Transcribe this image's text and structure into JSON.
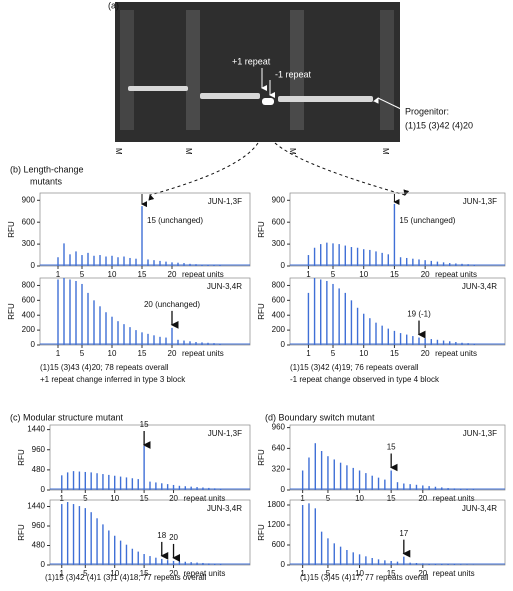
{
  "figure": {
    "panel_a": "(a)",
    "plus_repeat": "+1 repeat",
    "minus_repeat": "-1 repeat",
    "progenitor": "Progenitor:",
    "progenitor_structure": "(1)15 (3)42 (4)20",
    "marker": "M",
    "panel_b_line1": "(b) Length-change",
    "panel_b_line2": "mutants",
    "panel_c": "(c) Modular structure mutant",
    "panel_d": "(d) Boundary switch mutant"
  },
  "captions": [
    "(1)15 (3)43 (4)20; 78 repeats overall",
    "+1 repeat change inferred in type 3 block",
    "(1)15 (3)42 (4)19; 76 repeats overall",
    "-1 repeat change observed in type 4 block",
    "(1)15 (3)42 (4)1 (3)1 (4)18; 77 repeats overall",
    "(1)15 (3)45 (4)17; 77 repeats overall"
  ],
  "chart_data": [
    {
      "type": "bar",
      "label": "JUN-1,3F",
      "ylabel": "RFU",
      "xlabel": "repeat units",
      "color": "#3f6fd6",
      "xlim": [
        -2,
        33
      ],
      "ylim": [
        0,
        1000
      ],
      "xticks": [
        1,
        5,
        10,
        15,
        20
      ],
      "yticks": [
        0,
        300,
        600,
        900
      ],
      "x": [
        1,
        2,
        3,
        4,
        5,
        6,
        7,
        8,
        9,
        10,
        11,
        12,
        13,
        14,
        15,
        16,
        17,
        18,
        19,
        20,
        21,
        22,
        23,
        24,
        25,
        26,
        27,
        28
      ],
      "values": [
        120,
        310,
        160,
        200,
        150,
        180,
        140,
        150,
        130,
        140,
        120,
        130,
        110,
        100,
        820,
        90,
        80,
        70,
        60,
        50,
        45,
        40,
        30,
        25,
        20,
        15,
        10,
        8
      ],
      "annotations": [
        {
          "text": "15 (unchanged)",
          "x": 15
        }
      ]
    },
    {
      "type": "bar",
      "label": "JUN-3,4R",
      "ylabel": "RFU",
      "xlabel": "repeat units",
      "color": "#3f6fd6",
      "xlim": [
        -2,
        33
      ],
      "ylim": [
        0,
        900
      ],
      "xticks": [
        1,
        5,
        10,
        15,
        20
      ],
      "yticks": [
        0,
        200,
        400,
        600,
        800
      ],
      "x": [
        1,
        2,
        3,
        4,
        5,
        6,
        7,
        8,
        9,
        10,
        11,
        12,
        13,
        14,
        15,
        16,
        17,
        18,
        19,
        20,
        21,
        22,
        23,
        24,
        25,
        26,
        27,
        28
      ],
      "values": [
        880,
        900,
        880,
        860,
        820,
        700,
        600,
        520,
        440,
        380,
        320,
        280,
        240,
        200,
        170,
        150,
        130,
        110,
        100,
        230,
        70,
        60,
        50,
        40,
        35,
        30,
        25,
        20
      ],
      "annotations": [
        {
          "text": "20 (unchanged)",
          "x": 20
        }
      ]
    },
    {
      "type": "bar",
      "label": "JUN-1,3F",
      "ylabel": "RFU",
      "xlabel": "repeat units",
      "color": "#3f6fd6",
      "xlim": [
        -2,
        33
      ],
      "ylim": [
        0,
        1000
      ],
      "xticks": [
        1,
        5,
        10,
        15,
        20
      ],
      "yticks": [
        0,
        300,
        600,
        900
      ],
      "x": [
        1,
        2,
        3,
        4,
        5,
        6,
        7,
        8,
        9,
        10,
        11,
        12,
        13,
        14,
        15,
        16,
        17,
        18,
        19,
        20,
        21,
        22,
        23,
        24,
        25,
        26,
        27,
        28
      ],
      "values": [
        150,
        250,
        300,
        320,
        310,
        300,
        280,
        260,
        250,
        230,
        220,
        200,
        180,
        160,
        850,
        120,
        110,
        100,
        90,
        80,
        70,
        60,
        50,
        40,
        35,
        30,
        25,
        20
      ],
      "annotations": [
        {
          "text": "15 (unchanged)",
          "x": 15
        }
      ]
    },
    {
      "type": "bar",
      "label": "JUN-3,4R",
      "ylabel": "RFU",
      "xlabel": "repeat units",
      "color": "#3f6fd6",
      "xlim": [
        -2,
        33
      ],
      "ylim": [
        0,
        900
      ],
      "xticks": [
        1,
        5,
        10,
        15,
        20
      ],
      "yticks": [
        0,
        200,
        400,
        600,
        800
      ],
      "x": [
        1,
        2,
        3,
        4,
        5,
        6,
        7,
        8,
        9,
        10,
        11,
        12,
        13,
        14,
        15,
        16,
        17,
        18,
        19,
        20,
        21,
        22,
        23,
        24,
        25,
        26,
        27,
        28
      ],
      "values": [
        700,
        900,
        880,
        860,
        820,
        760,
        700,
        600,
        500,
        420,
        360,
        300,
        260,
        220,
        190,
        160,
        140,
        120,
        100,
        90,
        80,
        70,
        60,
        50,
        40,
        30,
        25,
        20
      ],
      "annotations": [
        {
          "text": "19 (-1)",
          "x": 19
        }
      ]
    },
    {
      "type": "bar",
      "label": "JUN-1,3F",
      "ylabel": "RFU",
      "xlabel": "repeat units",
      "color": "#3f6fd6",
      "xlim": [
        -1,
        33
      ],
      "ylim": [
        0,
        1550
      ],
      "xticks": [
        1,
        5,
        10,
        15,
        20
      ],
      "yticks": [
        0,
        480,
        960,
        1440
      ],
      "x": [
        1,
        2,
        3,
        4,
        5,
        6,
        7,
        8,
        9,
        10,
        11,
        12,
        13,
        14,
        15,
        16,
        17,
        18,
        19,
        20,
        21,
        22,
        23,
        24,
        25,
        26,
        27,
        28
      ],
      "values": [
        350,
        420,
        450,
        440,
        430,
        420,
        400,
        380,
        360,
        340,
        320,
        300,
        280,
        260,
        1050,
        200,
        180,
        160,
        140,
        120,
        100,
        90,
        80,
        70,
        60,
        50,
        40,
        30
      ],
      "annotations": [
        {
          "text": "15",
          "x": 15
        }
      ]
    },
    {
      "type": "bar",
      "label": "JUN-3,4R",
      "ylabel": "RFU",
      "xlabel": "repeat units",
      "color": "#3f6fd6",
      "xlim": [
        -1,
        33
      ],
      "ylim": [
        0,
        1600
      ],
      "xticks": [
        1,
        5,
        10,
        15,
        20
      ],
      "yticks": [
        0,
        480,
        960,
        1440
      ],
      "x": [
        1,
        2,
        3,
        4,
        5,
        6,
        7,
        8,
        9,
        10,
        11,
        12,
        13,
        14,
        15,
        16,
        17,
        18,
        19,
        20,
        21,
        22,
        23,
        24,
        25,
        26,
        27,
        28
      ],
      "values": [
        1500,
        1550,
        1500,
        1450,
        1400,
        1300,
        1150,
        1000,
        850,
        720,
        600,
        500,
        400,
        330,
        270,
        220,
        180,
        150,
        120,
        100,
        90,
        80,
        70,
        60,
        50,
        40,
        30,
        20
      ],
      "annotations": [
        {
          "text": "18",
          "x": 18
        },
        {
          "text": "20",
          "x": 20
        }
      ]
    },
    {
      "type": "bar",
      "label": "JUN-1,3F",
      "ylabel": "RFU",
      "xlabel": "repeat units",
      "color": "#3f6fd6",
      "xlim": [
        -1,
        33
      ],
      "ylim": [
        0,
        1000
      ],
      "xticks": [
        1,
        5,
        10,
        15,
        20
      ],
      "yticks": [
        0,
        320,
        640,
        960
      ],
      "x": [
        1,
        2,
        3,
        4,
        5,
        6,
        7,
        8,
        9,
        10,
        11,
        12,
        13,
        14,
        15,
        16,
        17,
        18,
        19,
        20,
        21,
        22,
        23,
        24,
        25,
        26,
        27,
        28
      ],
      "values": [
        300,
        500,
        720,
        600,
        520,
        470,
        420,
        380,
        340,
        300,
        260,
        220,
        190,
        160,
        300,
        120,
        100,
        90,
        80,
        70,
        60,
        50,
        40,
        30,
        25,
        20,
        15,
        10
      ],
      "annotations": [
        {
          "text": "15",
          "x": 15
        }
      ]
    },
    {
      "type": "bar",
      "label": "JUN-3,4R",
      "ylabel": "RFU",
      "xlabel": "repeat units",
      "color": "#3f6fd6",
      "xlim": [
        -1,
        33
      ],
      "ylim": [
        0,
        1950
      ],
      "xticks": [
        1,
        5,
        10,
        15,
        20
      ],
      "yticks": [
        0,
        600,
        1200,
        1800
      ],
      "x": [
        1,
        2,
        3,
        4,
        5,
        6,
        7,
        8,
        9,
        10,
        11,
        12,
        13,
        14,
        15,
        16,
        17,
        18,
        19,
        20,
        21,
        22,
        23,
        24,
        25,
        26,
        27,
        28
      ],
      "values": [
        1800,
        1850,
        1700,
        1000,
        800,
        650,
        550,
        450,
        380,
        320,
        260,
        210,
        170,
        140,
        120,
        100,
        250,
        70,
        60,
        50,
        40,
        30,
        25,
        20,
        15,
        10,
        8,
        5
      ],
      "annotations": [
        {
          "text": "17",
          "x": 17
        }
      ]
    }
  ]
}
